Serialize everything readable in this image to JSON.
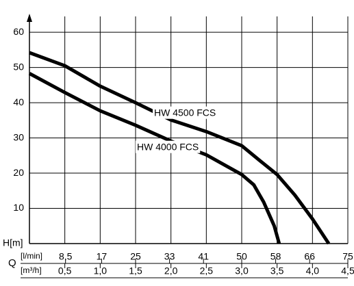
{
  "chart_data": {
    "type": "line",
    "y_label": "H[m]",
    "x_label": "Q",
    "x2_unit": "[l/min]",
    "x_unit": "[m³/h]",
    "xlim": [
      0,
      4.5
    ],
    "xticks": [
      {
        "value": 0.5,
        "label": "0,5"
      },
      {
        "value": 1.0,
        "label": "1,0"
      },
      {
        "value": 1.5,
        "label": "1,5"
      },
      {
        "value": 2.0,
        "label": "2,0"
      },
      {
        "value": 2.5,
        "label": "2,5"
      },
      {
        "value": 3.0,
        "label": "3,0"
      },
      {
        "value": 3.5,
        "label": "3,5"
      },
      {
        "value": 4.0,
        "label": "4,0"
      },
      {
        "value": 4.5,
        "label": "4,5"
      }
    ],
    "x2lim": [
      0,
      75
    ],
    "x2ticks": [
      {
        "value": 8.5,
        "label": "8,5"
      },
      17,
      25,
      33,
      41,
      50,
      58,
      66,
      75
    ],
    "ylim": [
      0,
      64.5
    ],
    "yticks": [
      10,
      20,
      30,
      40,
      50,
      60
    ],
    "grid": true,
    "series": [
      {
        "name": "HW 4500 FCS",
        "color": "#000000",
        "x": [
          0,
          0.5,
          1.0,
          1.5,
          2.0,
          2.5,
          3.0,
          3.26,
          3.5,
          3.75,
          4.0,
          4.23
        ],
        "values": [
          54.2,
          50.5,
          44.7,
          40,
          35.1,
          31.8,
          27.8,
          23.5,
          19.6,
          13.8,
          7,
          0
        ]
      },
      {
        "name": "HW 4000 FCS",
        "color": "#000000",
        "x": [
          0,
          0.5,
          1.0,
          1.5,
          2.0,
          2.5,
          3.0,
          3.17,
          3.31,
          3.46,
          3.53
        ],
        "values": [
          48.3,
          42.9,
          37.7,
          33.6,
          29.1,
          25.2,
          19.6,
          16.7,
          11.8,
          5,
          0
        ]
      }
    ]
  }
}
